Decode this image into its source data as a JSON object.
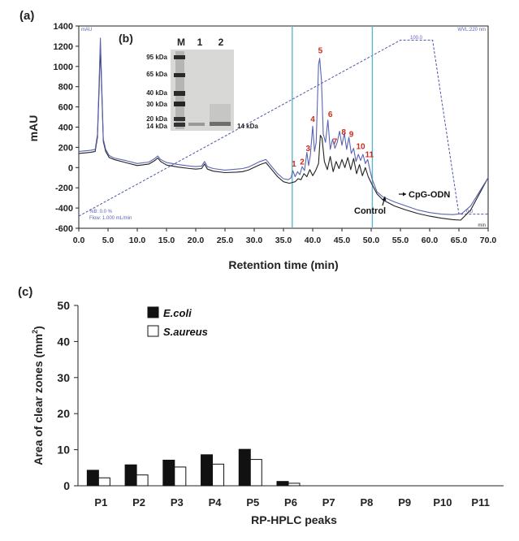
{
  "chart_data": [
    {
      "panel_label": "(a)",
      "type": "line",
      "ylabel": "mAU",
      "xlabel": "Retention time (min)",
      "xlim": [
        0,
        70
      ],
      "ylim": [
        -600,
        1400
      ],
      "x_ticks": [
        "0.0",
        "5.0",
        "10.0",
        "15.0",
        "20.0",
        "25.0",
        "30.0",
        "35.0",
        "40.0",
        "45.0",
        "50.0",
        "55.0",
        "60.0",
        "65.0",
        "70.0"
      ],
      "y_ticks": [
        "-600",
        "-400",
        "-200",
        "0",
        "200",
        "400",
        "600",
        "800",
        "1000",
        "1200",
        "1400"
      ],
      "vertical_lines_x": [
        36.5,
        50.2
      ],
      "corner_labels": {
        "top_left": "mAU",
        "top_right": "WVL:220 nm",
        "bottom_right": "min"
      },
      "gradient_labels": {
        "start_pct": "%B: 0.0 %",
        "flow": "Flow: 1.000 mL/min",
        "top": "100.0",
        "end": "0.0"
      },
      "gradient": {
        "x": [
          0,
          55,
          60.5,
          65,
          70
        ],
        "y": [
          -480,
          1260,
          1260,
          -460,
          -460
        ]
      },
      "peak_labels": [
        {
          "label": "1",
          "x": 36.8,
          "y": -20
        },
        {
          "label": "2",
          "x": 38.2,
          "y": 0
        },
        {
          "label": "3",
          "x": 39.2,
          "y": 130
        },
        {
          "label": "4",
          "x": 40.0,
          "y": 420
        },
        {
          "label": "5",
          "x": 41.3,
          "y": 1100
        },
        {
          "label": "6",
          "x": 43.0,
          "y": 470
        },
        {
          "label": "7",
          "x": 43.8,
          "y": 200
        },
        {
          "label": "8",
          "x": 45.3,
          "y": 290
        },
        {
          "label": "9",
          "x": 46.6,
          "y": 270
        },
        {
          "label": "10",
          "x": 48.2,
          "y": 150
        },
        {
          "label": "11",
          "x": 49.7,
          "y": 70
        }
      ],
      "series": [
        {
          "name": "CpG-ODN",
          "color": "#5a64b4",
          "x": [
            0,
            2,
            2.8,
            3.2,
            3.5,
            3.7,
            3.9,
            4.2,
            4.6,
            5.2,
            6,
            8,
            10,
            12,
            13,
            13.5,
            14,
            15,
            17,
            19,
            20,
            21,
            21.5,
            22,
            23,
            25,
            27,
            28,
            29,
            31,
            32,
            33,
            34,
            35,
            35.8,
            36.3,
            36.6,
            37,
            37.4,
            37.8,
            38.2,
            38.6,
            39,
            39.3,
            39.6,
            40,
            40.3,
            40.6,
            41,
            41.2,
            41.5,
            41.8,
            42.2,
            42.6,
            43,
            43.4,
            43.8,
            44.2,
            44.6,
            45,
            45.4,
            45.8,
            46.2,
            46.6,
            47,
            47.4,
            47.8,
            48.2,
            48.6,
            49,
            49.4,
            49.8,
            50.2,
            51,
            52,
            54,
            56,
            58,
            60,
            62,
            64,
            65.5,
            67,
            70
          ],
          "y": [
            160,
            170,
            180,
            330,
            900,
            1280,
            860,
            280,
            180,
            120,
            95,
            70,
            40,
            55,
            90,
            115,
            80,
            50,
            30,
            15,
            10,
            15,
            60,
            10,
            -10,
            -25,
            -15,
            -10,
            5,
            60,
            80,
            10,
            -60,
            -110,
            -120,
            -100,
            -30,
            -90,
            -40,
            -70,
            10,
            -30,
            150,
            20,
            120,
            410,
            160,
            250,
            1020,
            1080,
            860,
            330,
            250,
            470,
            180,
            280,
            190,
            250,
            360,
            220,
            340,
            180,
            300,
            140,
            190,
            60,
            130,
            70,
            130,
            40,
            80,
            -30,
            -120,
            -240,
            -290,
            -340,
            -380,
            -420,
            -445,
            -460,
            -465,
            -455,
            -380,
            -100
          ]
        },
        {
          "name": "Control",
          "color": "#222222",
          "x": [
            0,
            2,
            2.8,
            3.2,
            3.5,
            3.7,
            3.9,
            4.2,
            4.6,
            5.2,
            6,
            8,
            10,
            12,
            13,
            13.5,
            14,
            15,
            17,
            19,
            20,
            21,
            21.5,
            22,
            23,
            25,
            27,
            28,
            29,
            31,
            32,
            33,
            34,
            35,
            36,
            37,
            37.5,
            38,
            38.5,
            39,
            39.5,
            40,
            40.5,
            41,
            41.3,
            41.6,
            42,
            42.5,
            43,
            43.5,
            44,
            44.5,
            45,
            45.5,
            46,
            46.5,
            47,
            47.5,
            48,
            48.5,
            49,
            49.5,
            50,
            51,
            52,
            54,
            56,
            58,
            60,
            62,
            64,
            65.3,
            67,
            70
          ],
          "y": [
            140,
            150,
            160,
            300,
            820,
            1200,
            800,
            260,
            160,
            100,
            80,
            50,
            20,
            35,
            70,
            95,
            60,
            25,
            5,
            -10,
            -15,
            -10,
            35,
            -15,
            -35,
            -50,
            -45,
            -40,
            -25,
            30,
            50,
            -20,
            -90,
            -140,
            -155,
            -140,
            -110,
            -120,
            -60,
            -90,
            -20,
            -80,
            -30,
            40,
            320,
            290,
            60,
            -20,
            110,
            -40,
            60,
            -10,
            80,
            0,
            100,
            -20,
            90,
            -60,
            30,
            -80,
            0,
            -90,
            -150,
            -260,
            -320,
            -380,
            -420,
            -455,
            -480,
            -500,
            -515,
            -520,
            -420,
            -100
          ]
        }
      ],
      "series_labels": [
        "CpG-ODN",
        "Control"
      ],
      "inset": {
        "panel_label": "(b)",
        "lane_labels": [
          "M",
          "1",
          "2"
        ],
        "marker_labels": [
          "95 kDa",
          "65 kDa",
          "40 kDa",
          "30 kDa",
          "20 kDa",
          "14 kDa"
        ],
        "band_label": "14 kDa"
      }
    },
    {
      "panel_label": "(c)",
      "type": "bar",
      "categories": [
        "P1",
        "P2",
        "P3",
        "P4",
        "P5",
        "P6",
        "P7",
        "P8",
        "P9",
        "P10",
        "P11"
      ],
      "ylabel_main": "Area of clear zones (mm",
      "ylabel_sup": "2",
      "ylabel_end": ")",
      "xlabel": "RP-HPLC peaks",
      "ylim": [
        0,
        50
      ],
      "y_ticks": [
        "0",
        "10",
        "20",
        "30",
        "40",
        "50"
      ],
      "legend_placement": "top-left",
      "series": [
        {
          "name": "E.coli",
          "color": "#111111",
          "values": [
            4.3,
            5.8,
            7.1,
            8.6,
            10.1,
            1.2,
            0,
            0,
            0,
            0,
            0
          ]
        },
        {
          "name": "S.aureus",
          "color": "#ffffff",
          "values": [
            2.2,
            3.0,
            5.2,
            6.0,
            7.3,
            0.7,
            0,
            0,
            0,
            0,
            0
          ]
        }
      ]
    }
  ]
}
